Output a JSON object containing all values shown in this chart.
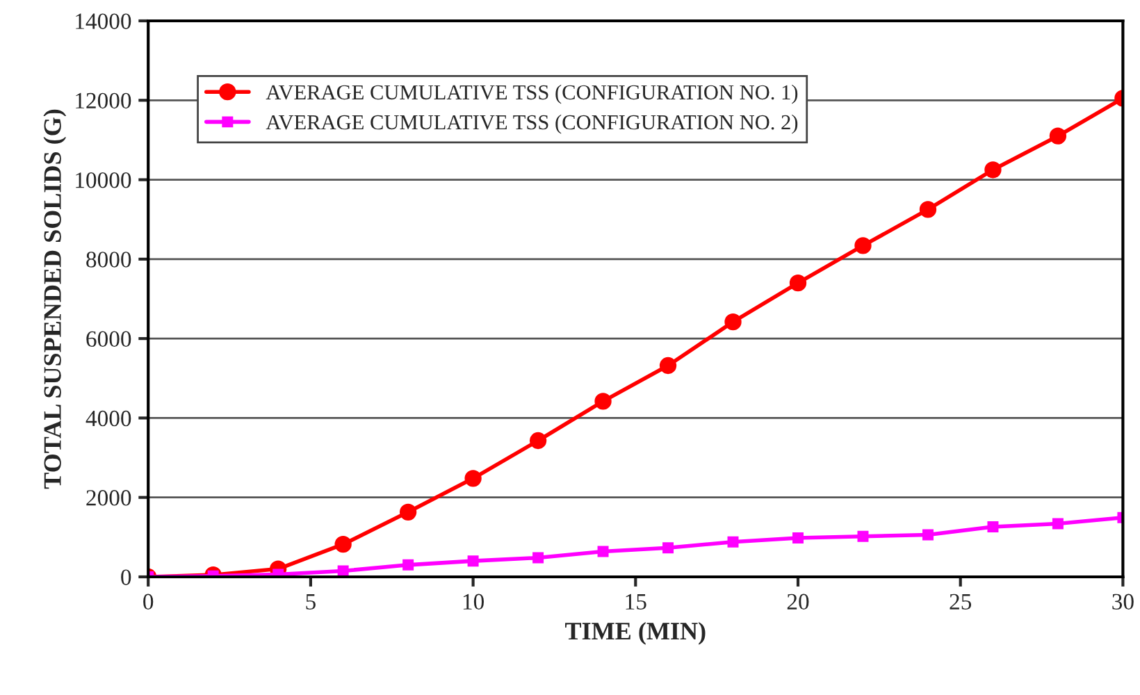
{
  "chart_data": {
    "type": "line",
    "xlabel": "TIME (MIN)",
    "ylabel": "TOTAL SUSPENDED SOLIDS (G)",
    "x": [
      0,
      2,
      4,
      6,
      8,
      10,
      12,
      14,
      16,
      18,
      20,
      22,
      24,
      26,
      28,
      30
    ],
    "series": [
      {
        "name": "AVERAGE CUMULATIVE TSS (CONFIGURATION NO. 1)",
        "color": "#ff0000",
        "marker": "circle",
        "values": [
          0,
          50,
          200,
          820,
          1630,
          2480,
          3430,
          4420,
          5320,
          6420,
          7400,
          8340,
          9250,
          10250,
          11100,
          12050
        ]
      },
      {
        "name": "AVERAGE CUMULATIVE TSS (CONFIGURATION NO. 2)",
        "color": "#ff00ff",
        "marker": "square",
        "values": [
          0,
          20,
          60,
          150,
          300,
          400,
          480,
          640,
          730,
          880,
          980,
          1020,
          1060,
          1260,
          1340,
          1490
        ]
      }
    ],
    "xlim": [
      0,
      30
    ],
    "xticks": [
      0,
      5,
      10,
      15,
      20,
      25,
      30
    ],
    "ylim": [
      0,
      14000
    ],
    "yticks": [
      0,
      2000,
      4000,
      6000,
      8000,
      10000,
      12000,
      14000
    ],
    "grid": "y",
    "legend": "top left",
    "line_style": "solid"
  }
}
